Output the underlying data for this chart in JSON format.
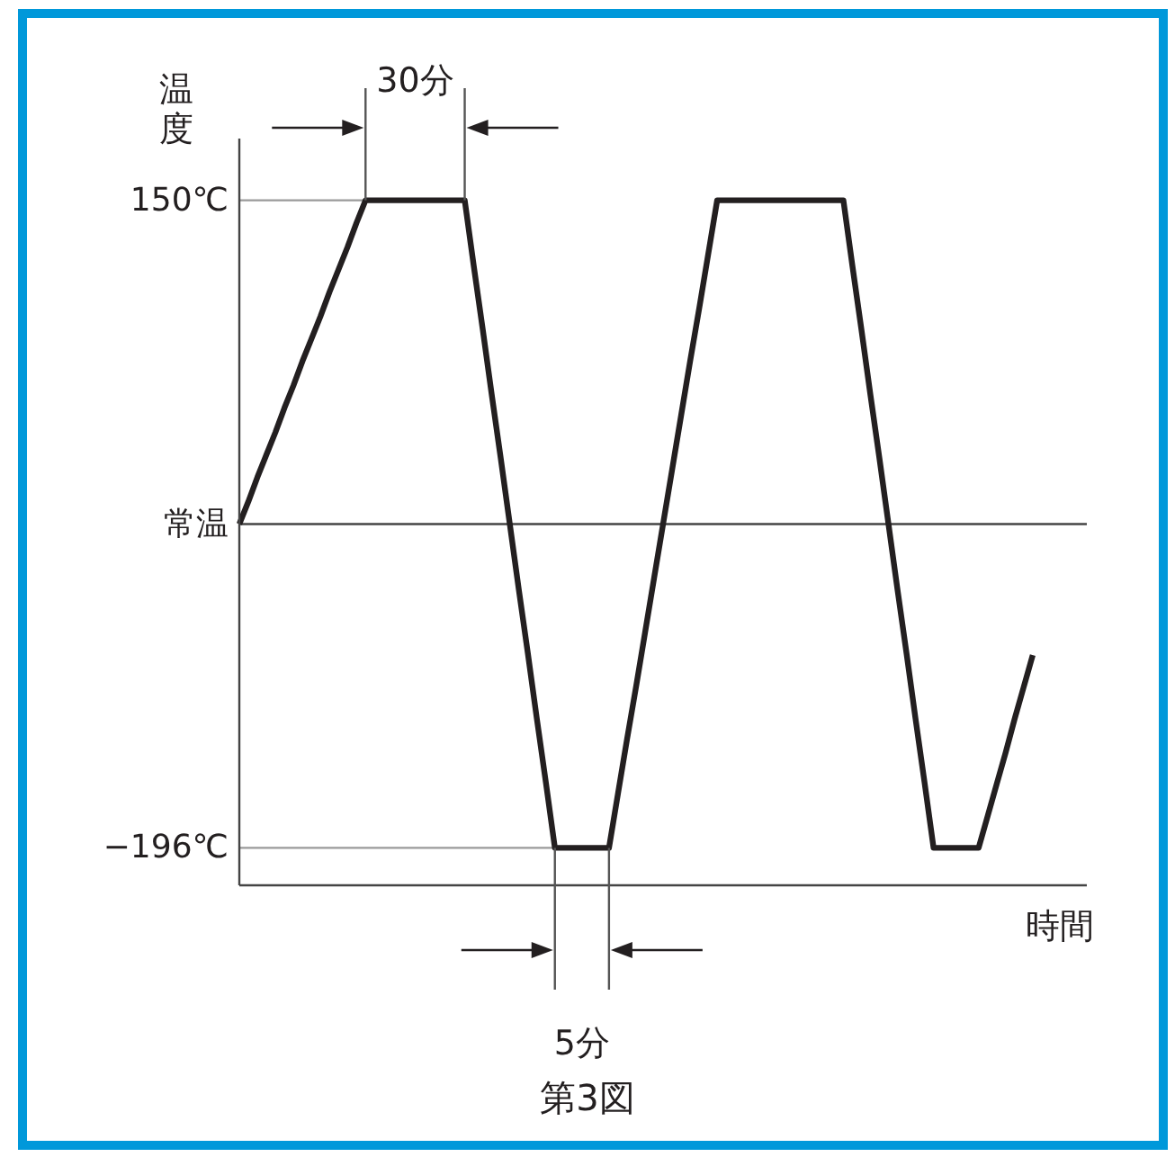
{
  "chart_data": {
    "type": "line",
    "xlabel": "時間",
    "ylabel": "温度",
    "categories": [
      null,
      null,
      null,
      null,
      null,
      null,
      null,
      null,
      null,
      null,
      null,
      null,
      null,
      null,
      null,
      null,
      null,
      null,
      null,
      null,
      null,
      null,
      null,
      null,
      null,
      null,
      null,
      null,
      null,
      null,
      null,
      null,
      null,
      null,
      null,
      null,
      null,
      null,
      null,
      null,
      null,
      null,
      null,
      null,
      null,
      null,
      null,
      null,
      null,
      null,
      null,
      null,
      null,
      null,
      null,
      null,
      null,
      null,
      null,
      null,
      null,
      null,
      null,
      null,
      null,
      null,
      null,
      null,
      null,
      null,
      null,
      null,
      null,
      null,
      null,
      null,
      null,
      null,
      null,
      null,
      null,
      null,
      null,
      null,
      null,
      null,
      null,
      null,
      null
    ],
    "series": [
      {
        "color": "#231f20",
        "values": [
          -23,
          -11,
          2,
          14,
          26,
          39,
          51,
          64,
          76,
          88,
          101,
          113,
          125,
          138,
          150,
          150,
          150,
          150,
          150,
          150,
          150,
          150,
          150,
          150,
          150,
          150,
          115,
          81,
          46,
          12,
          -23,
          -58,
          -92,
          -127,
          -161,
          -196,
          -196,
          -196,
          -196,
          -196,
          -196,
          -196,
          -167,
          -138,
          -110,
          -81,
          -52,
          -23,
          6,
          35,
          64,
          92,
          121,
          150,
          150,
          150,
          150,
          150,
          150,
          150,
          150,
          150,
          150,
          150,
          150,
          150,
          150,
          150,
          115,
          81,
          46,
          12,
          -23,
          -58,
          -92,
          -127,
          -161,
          -196,
          -196,
          -196,
          -196,
          -196,
          -196,
          -179,
          -162,
          -145,
          -127,
          -110,
          -93
        ]
      }
    ],
    "ylim": [
      -216,
      183
    ],
    "yticks": [
      {
        "value": 150,
        "label": "150℃"
      },
      {
        "value": -23,
        "label": "常温"
      },
      {
        "value": -196,
        "label": "−196℃"
      }
    ],
    "tick_labels": "y",
    "ref_lines": [
      {
        "axis": "y",
        "value": -23,
        "color": "#444444"
      }
    ],
    "annotations": [
      {
        "text": "30分",
        "y": 150
      },
      "5分",
      "第3図"
    ]
  }
}
